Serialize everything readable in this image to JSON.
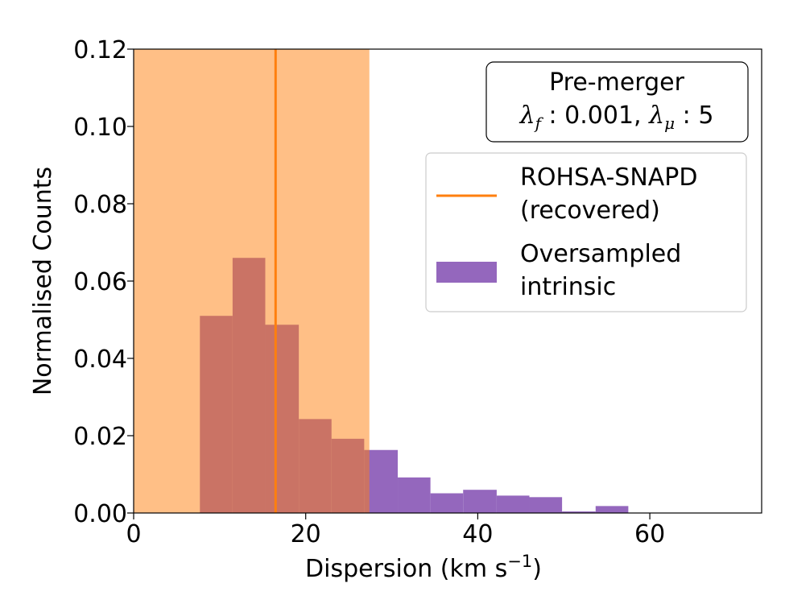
{
  "chart_data": {
    "type": "histogram",
    "title": "",
    "xlabel": "Dispersion (km s",
    "xlabel_sup": "−1",
    "xlabel_close": ")",
    "ylabel": "Normalised Counts",
    "xlim": [
      0,
      73
    ],
    "ylim": [
      0,
      0.12
    ],
    "x_ticks": [
      0,
      20,
      40,
      60
    ],
    "x_tick_labels": [
      "0",
      "20",
      "40",
      "60"
    ],
    "y_ticks": [
      0,
      0.02,
      0.04,
      0.06,
      0.08,
      0.1,
      0.12
    ],
    "y_tick_labels": [
      "0.00",
      "0.02",
      "0.04",
      "0.06",
      "0.08",
      "0.10",
      "0.12"
    ],
    "grid": false,
    "histogram": {
      "name": "Oversampled intrinsic",
      "color": "#9467bd",
      "bin_edges": [
        7.7,
        11.5,
        15.3,
        19.2,
        23.0,
        26.8,
        30.7,
        34.5,
        38.3,
        42.2,
        46.0,
        49.8,
        53.7,
        57.5
      ],
      "values": [
        0.051,
        0.066,
        0.0487,
        0.0243,
        0.0192,
        0.0163,
        0.0092,
        0.0051,
        0.006,
        0.0045,
        0.0041,
        0.0004,
        0.0018
      ]
    },
    "band": {
      "x_start": 0,
      "x_end": 27.4,
      "color": "#ff7f0e",
      "opacity": 0.5
    },
    "vline": {
      "name": "ROHSA-SNAPD (recovered)",
      "x": 16.5,
      "color": "#ff7f0e"
    },
    "legend": {
      "placement": "upper-right",
      "entries": [
        {
          "line1": "ROHSA-SNAPD",
          "line2": "(recovered)",
          "kind": "line",
          "color": "#ff7f0e"
        },
        {
          "line1": "Oversampled",
          "line2": "intrinsic",
          "kind": "patch",
          "color": "#9467bd"
        }
      ]
    },
    "annotation": {
      "line1": "Pre-merger",
      "lambda_symbol": "λ",
      "sub_f": "f",
      "value_f": " : 0.001, ",
      "sub_mu": "μ",
      "value_mu": " : 5"
    }
  }
}
